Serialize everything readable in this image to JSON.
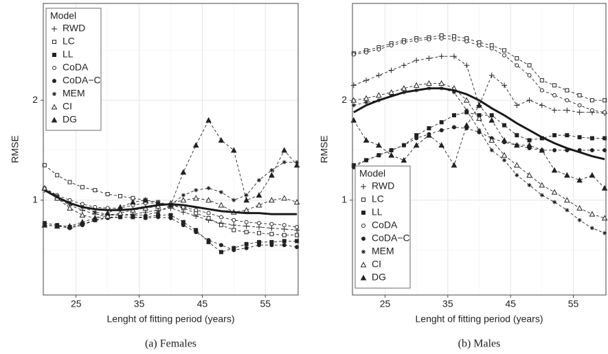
{
  "chart_data": [
    {
      "type": "line",
      "caption": "(a) Females",
      "x_label": "Lenght of fitting period (years)",
      "y_label": "RMSE",
      "legend_title": "Model",
      "legend": "top-left",
      "grid": true,
      "xlim": [
        19.8,
        60.2
      ],
      "ylim": [
        0.05,
        2.97
      ],
      "xticks": [
        25,
        35,
        45,
        55
      ],
      "yticks": [
        1,
        2
      ],
      "xminor": [
        20,
        30,
        40,
        50,
        60
      ],
      "yminor": [
        0.5,
        1.5,
        2.5
      ],
      "x": [
        20,
        22,
        24,
        26,
        28,
        30,
        32,
        34,
        36,
        38,
        40,
        42,
        44,
        46,
        48,
        50,
        52,
        54,
        56,
        58,
        60
      ],
      "series": [
        {
          "name": "RWD",
          "color": "#222",
          "shape": "plus",
          "values": [
            1.1,
            1.02,
            0.95,
            0.9,
            0.86,
            0.85,
            0.85,
            0.86,
            0.88,
            0.9,
            0.92,
            0.88,
            0.84,
            0.8,
            0.77,
            0.75,
            0.74,
            0.73,
            0.72,
            0.71,
            0.7
          ]
        },
        {
          "name": "LC",
          "color": "#222",
          "shape": "square-open",
          "values": [
            1.35,
            1.25,
            1.18,
            1.13,
            1.1,
            1.06,
            1.04,
            1.02,
            1.0,
            0.98,
            0.95,
            0.92,
            0.87,
            0.82,
            0.75,
            0.7,
            0.68,
            0.67,
            0.66,
            0.65,
            0.65
          ]
        },
        {
          "name": "LL",
          "color": "#222",
          "shape": "square",
          "values": [
            0.77,
            0.75,
            0.73,
            0.76,
            0.8,
            0.83,
            0.83,
            0.83,
            0.83,
            0.85,
            0.85,
            0.78,
            0.7,
            0.58,
            0.48,
            0.52,
            0.56,
            0.58,
            0.58,
            0.59,
            0.59
          ]
        },
        {
          "name": "CoDA",
          "color": "#222",
          "shape": "circle-open",
          "values": [
            1.12,
            1.05,
            1.0,
            0.96,
            0.93,
            0.92,
            0.92,
            0.95,
            0.97,
            0.97,
            0.95,
            0.93,
            0.9,
            0.87,
            0.83,
            0.8,
            0.78,
            0.77,
            0.76,
            0.75,
            0.73
          ]
        },
        {
          "name": "CoDA−C",
          "color": "#222",
          "shape": "circle",
          "values": [
            0.75,
            0.74,
            0.72,
            0.75,
            0.8,
            0.82,
            0.83,
            0.83,
            0.82,
            0.83,
            0.82,
            0.75,
            0.68,
            0.6,
            0.55,
            0.5,
            0.52,
            0.55,
            0.55,
            0.55,
            0.53
          ]
        },
        {
          "name": "MEM",
          "color": "#222",
          "shape": "asterisk",
          "values": [
            1.12,
            1.04,
            0.97,
            0.93,
            0.88,
            0.86,
            0.85,
            0.85,
            0.85,
            0.88,
            0.95,
            1.05,
            1.1,
            1.12,
            1.08,
            1.0,
            1.05,
            1.2,
            1.3,
            1.38,
            1.38
          ]
        },
        {
          "name": "CI",
          "color": "#222",
          "shape": "triangle-open",
          "values": [
            1.12,
            1.02,
            0.92,
            0.85,
            0.82,
            0.84,
            0.87,
            0.9,
            0.92,
            0.94,
            0.97,
            1.0,
            1.02,
            1.0,
            0.95,
            0.88,
            0.9,
            0.95,
            1.0,
            1.02,
            0.98
          ]
        },
        {
          "name": "DG",
          "color": "#222",
          "shape": "triangle",
          "values": [
            0.75,
            0.74,
            0.74,
            0.78,
            0.82,
            0.87,
            0.93,
            0.98,
            1.0,
            0.97,
            0.95,
            1.28,
            1.55,
            1.8,
            1.6,
            1.5,
            1.0,
            1.05,
            1.25,
            1.5,
            1.35
          ]
        }
      ],
      "smooth": {
        "color": "#1a1a1a",
        "values": [
          1.1,
          1.03,
          0.97,
          0.93,
          0.91,
          0.9,
          0.9,
          0.91,
          0.93,
          0.95,
          0.96,
          0.95,
          0.93,
          0.91,
          0.89,
          0.88,
          0.87,
          0.87,
          0.86,
          0.86,
          0.86
        ]
      }
    },
    {
      "type": "line",
      "caption": "(b) Males",
      "x_label": "Lenght of fitting period (years)",
      "y_label": "RMSE",
      "legend_title": "Model",
      "legend": "bottom-left",
      "grid": true,
      "xlim": [
        19.8,
        60.2
      ],
      "ylim": [
        0.05,
        2.97
      ],
      "xticks": [
        25,
        35,
        45,
        55
      ],
      "yticks": [
        1,
        2
      ],
      "xminor": [
        20,
        30,
        40,
        50,
        60
      ],
      "yminor": [
        0.5,
        1.5,
        2.5
      ],
      "x": [
        20,
        22,
        24,
        26,
        28,
        30,
        32,
        34,
        36,
        38,
        40,
        42,
        44,
        46,
        48,
        50,
        52,
        54,
        56,
        58,
        60
      ],
      "series": [
        {
          "name": "RWD",
          "color": "#222",
          "shape": "plus",
          "values": [
            2.15,
            2.2,
            2.25,
            2.3,
            2.35,
            2.4,
            2.42,
            2.44,
            2.44,
            2.35,
            1.95,
            2.25,
            2.15,
            1.95,
            2.0,
            1.95,
            1.9,
            1.9,
            1.88,
            1.88,
            1.87
          ]
        },
        {
          "name": "LC",
          "color": "#222",
          "shape": "square-open",
          "values": [
            2.47,
            2.5,
            2.53,
            2.57,
            2.6,
            2.62,
            2.63,
            2.65,
            2.64,
            2.62,
            2.58,
            2.55,
            2.5,
            2.42,
            2.35,
            2.2,
            2.15,
            2.1,
            2.05,
            2.0,
            2.0
          ]
        },
        {
          "name": "LL",
          "color": "#222",
          "shape": "square",
          "values": [
            1.35,
            1.4,
            1.45,
            1.5,
            1.55,
            1.65,
            1.72,
            1.78,
            1.85,
            1.88,
            1.85,
            1.85,
            1.75,
            1.65,
            1.6,
            1.62,
            1.65,
            1.65,
            1.63,
            1.62,
            1.62
          ]
        },
        {
          "name": "CoDA",
          "color": "#222",
          "shape": "circle-open",
          "values": [
            2.46,
            2.48,
            2.51,
            2.55,
            2.58,
            2.6,
            2.61,
            2.62,
            2.61,
            2.59,
            2.55,
            2.52,
            2.45,
            2.35,
            2.25,
            2.1,
            2.05,
            2.0,
            1.95,
            1.9,
            1.88
          ]
        },
        {
          "name": "CoDA−C",
          "color": "#222",
          "shape": "circle",
          "values": [
            1.33,
            1.4,
            1.45,
            1.5,
            1.55,
            1.62,
            1.66,
            1.7,
            1.73,
            1.72,
            1.68,
            1.62,
            1.58,
            1.55,
            1.52,
            1.5,
            1.5,
            1.5,
            1.5,
            1.5,
            1.5
          ]
        },
        {
          "name": "MEM",
          "color": "#222",
          "shape": "asterisk",
          "values": [
            1.95,
            1.98,
            2.0,
            2.05,
            2.08,
            2.1,
            2.12,
            2.12,
            2.08,
            1.9,
            1.7,
            1.5,
            1.4,
            1.25,
            1.15,
            1.05,
            0.98,
            0.9,
            0.8,
            0.72,
            0.67
          ]
        },
        {
          "name": "CI",
          "color": "#222",
          "shape": "triangle-open",
          "values": [
            2.0,
            2.02,
            2.05,
            2.08,
            2.12,
            2.15,
            2.17,
            2.17,
            2.12,
            2.0,
            1.82,
            1.6,
            1.45,
            1.35,
            1.25,
            1.15,
            1.08,
            1.0,
            0.92,
            0.86,
            0.82
          ]
        },
        {
          "name": "DG",
          "color": "#222",
          "shape": "triangle",
          "values": [
            1.8,
            1.6,
            1.55,
            1.45,
            1.4,
            1.55,
            1.65,
            1.55,
            1.35,
            1.75,
            1.95,
            1.8,
            1.6,
            1.55,
            1.55,
            1.5,
            1.3,
            1.25,
            1.2,
            1.25,
            1.12
          ]
        }
      ],
      "smooth": {
        "color": "#1a1a1a",
        "values": [
          1.88,
          1.95,
          2.0,
          2.04,
          2.08,
          2.1,
          2.12,
          2.12,
          2.1,
          2.06,
          2.0,
          1.92,
          1.85,
          1.77,
          1.7,
          1.63,
          1.57,
          1.52,
          1.48,
          1.44,
          1.41
        ]
      }
    }
  ]
}
